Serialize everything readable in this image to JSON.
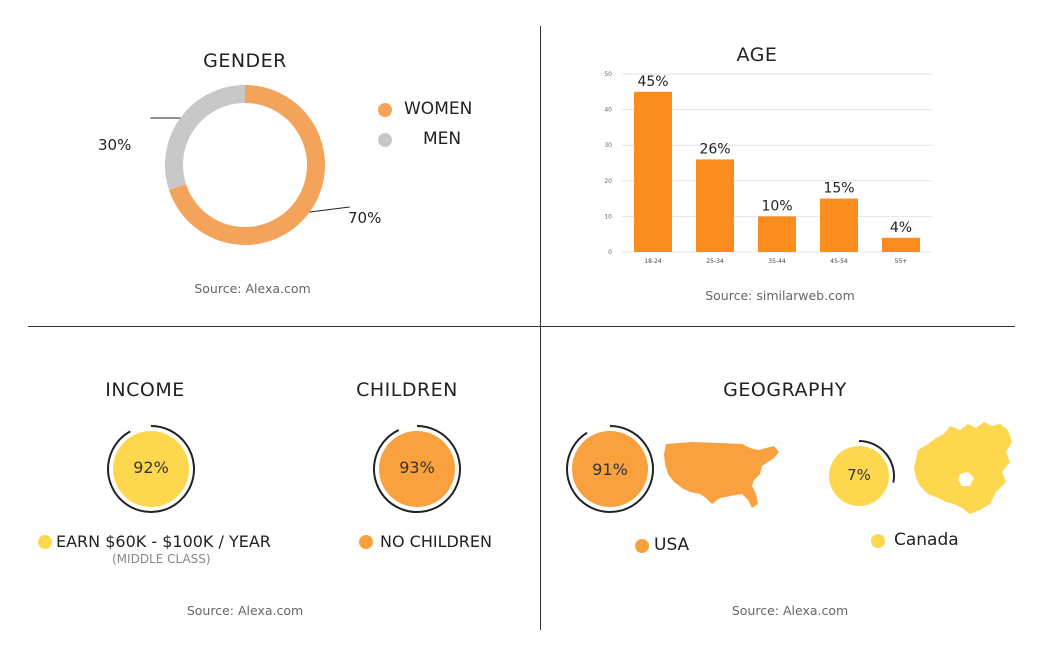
{
  "colors": {
    "orange": "#f4a35a",
    "orange_dark": "#fb8c1e",
    "orange_mid": "#f9a03f",
    "yellow": "#fdd84f",
    "gray": "#c8c8c8",
    "divider": "#333333"
  },
  "gender": {
    "source": "Source: Alexa.com",
    "legend": [
      {
        "label": "WOMEN",
        "color": "#f4a35a"
      },
      {
        "label": "MEN",
        "color": "#c8c8c8"
      }
    ]
  },
  "age": {
    "source": "Source: similarweb.com"
  },
  "income": {
    "source": "Source: Alexa.com",
    "legend_sub": "(MIDDLE CLASS)"
  },
  "geography": {
    "source": "Source: Alexa.com",
    "usa_icon": "usa-map-icon",
    "canada_icon": "canada-map-icon"
  },
  "chart_data": [
    {
      "type": "pie",
      "title": "GENDER",
      "categories": [
        "WOMEN",
        "MEN"
      ],
      "values": [
        70,
        30
      ],
      "labels": [
        "70%",
        "30%"
      ],
      "legend": "right"
    },
    {
      "type": "bar",
      "title": "AGE",
      "categories": [
        "18-24",
        "25-34",
        "35-44",
        "45-54",
        "55+"
      ],
      "values": [
        45,
        26,
        10,
        15,
        4
      ],
      "data_labels": [
        "45%",
        "26%",
        "10%",
        "15%",
        "4%"
      ],
      "yticks": [
        0,
        10,
        20,
        30,
        40,
        50
      ],
      "ylim": [
        0,
        50
      ],
      "grid": true
    },
    {
      "type": "pie",
      "title": "INCOME",
      "categories": [
        "EARN $60K - $100K / YEAR"
      ],
      "values": [
        92
      ],
      "labels": [
        "92%"
      ]
    },
    {
      "type": "pie",
      "title": "CHILDREN",
      "categories": [
        "NO CHILDREN"
      ],
      "values": [
        93
      ],
      "labels": [
        "93%"
      ]
    },
    {
      "type": "pie",
      "title": "GEOGRAPHY",
      "categories": [
        "USA",
        "Canada"
      ],
      "values": [
        91,
        7
      ],
      "labels": [
        "91%",
        "7%"
      ]
    }
  ]
}
